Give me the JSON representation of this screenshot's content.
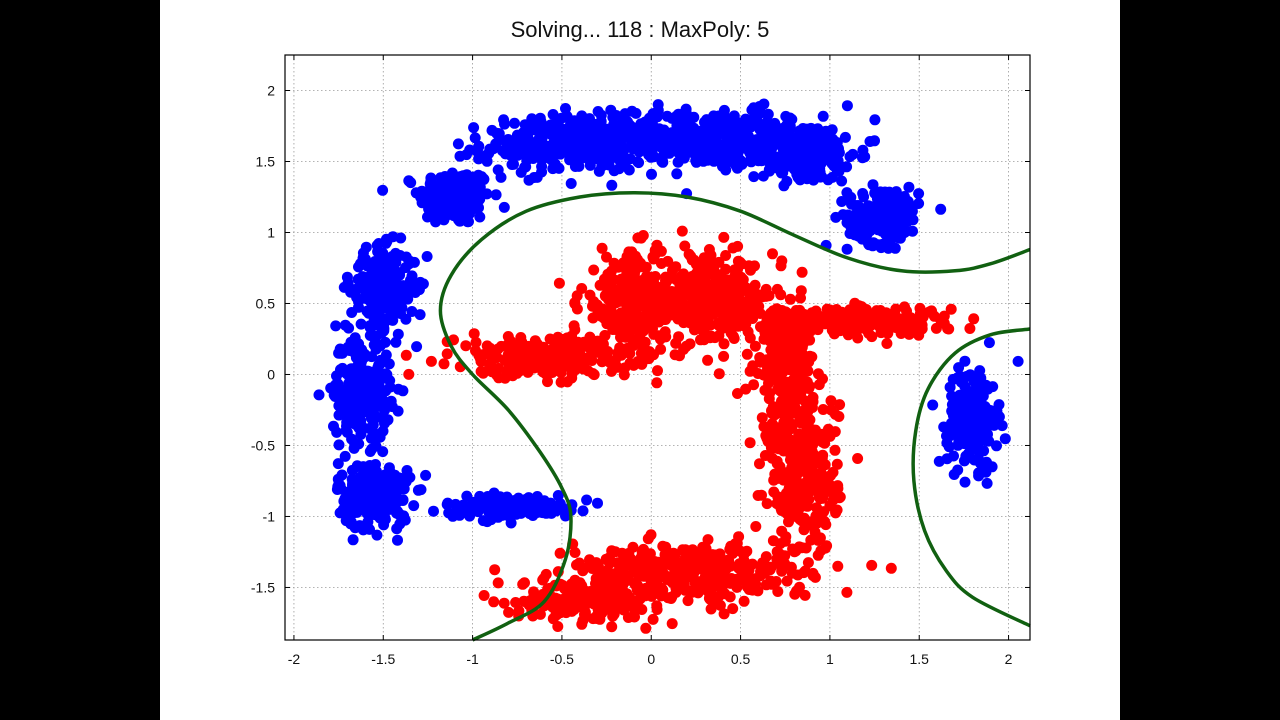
{
  "title": "Solving... 118 : MaxPoly:  5",
  "chart_data": {
    "type": "scatter",
    "title": "Solving... 118 : MaxPoly:  5",
    "xlabel": "",
    "ylabel": "",
    "xlim": [
      -2.05,
      2.12
    ],
    "ylim": [
      -1.87,
      2.25
    ],
    "grid": true,
    "x_ticks": [
      -2,
      -1.5,
      -1,
      -0.5,
      0,
      0.5,
      1,
      1.5,
      2
    ],
    "x_tick_labels": [
      "-2",
      "-1.5",
      "-1",
      "-0.5",
      "0",
      "0.5",
      "1",
      "1.5",
      "2"
    ],
    "y_ticks": [
      2,
      1.5,
      1,
      0.5,
      0,
      -0.5,
      -1,
      -1.5
    ],
    "y_tick_labels": [
      "2",
      "1.5",
      "1",
      "0.5",
      "0",
      "-0.5",
      "-1",
      "-1.5"
    ],
    "colors": {
      "blue": "#0000ff",
      "red": "#ff0000",
      "boundary": "#116011",
      "grid": "#9a9a9a"
    },
    "series": [
      {
        "color": "#0000ff",
        "clusters": [
          {
            "cx": -1.1,
            "cy": 1.25,
            "sx": 0.1,
            "sy": 0.1,
            "n": 200
          },
          {
            "cx": -0.45,
            "cy": 1.62,
            "sx": 0.25,
            "sy": 0.1,
            "n": 320
          },
          {
            "cx": 0.35,
            "cy": 1.66,
            "sx": 0.3,
            "sy": 0.1,
            "n": 360
          },
          {
            "cx": 0.85,
            "cy": 1.55,
            "sx": 0.15,
            "sy": 0.1,
            "n": 200
          },
          {
            "cx": 1.3,
            "cy": 1.12,
            "sx": 0.1,
            "sy": 0.1,
            "n": 190
          },
          {
            "cx": -1.5,
            "cy": 0.6,
            "sx": 0.09,
            "sy": 0.14,
            "n": 240
          },
          {
            "cx": -1.62,
            "cy": -0.1,
            "sx": 0.08,
            "sy": 0.18,
            "n": 240
          },
          {
            "cx": -1.55,
            "cy": -0.85,
            "sx": 0.1,
            "sy": 0.12,
            "n": 210
          },
          {
            "cx": -0.8,
            "cy": -0.93,
            "sx": 0.18,
            "sy": 0.04,
            "n": 170
          },
          {
            "cx": 1.8,
            "cy": -0.3,
            "sx": 0.07,
            "sy": 0.18,
            "n": 200
          }
        ]
      },
      {
        "color": "#ff0000",
        "clusters": [
          {
            "cx": -0.6,
            "cy": 0.12,
            "sx": 0.25,
            "sy": 0.07,
            "n": 280
          },
          {
            "cx": -0.1,
            "cy": 0.5,
            "sx": 0.15,
            "sy": 0.18,
            "n": 260
          },
          {
            "cx": 0.35,
            "cy": 0.52,
            "sx": 0.15,
            "sy": 0.15,
            "n": 280
          },
          {
            "cx": 0.75,
            "cy": 0.1,
            "sx": 0.08,
            "sy": 0.25,
            "n": 220
          },
          {
            "cx": 1.15,
            "cy": 0.38,
            "sx": 0.25,
            "sy": 0.05,
            "n": 200
          },
          {
            "cx": 0.85,
            "cy": -0.7,
            "sx": 0.1,
            "sy": 0.3,
            "n": 300
          },
          {
            "cx": 0.2,
            "cy": -1.4,
            "sx": 0.35,
            "sy": 0.1,
            "n": 340
          },
          {
            "cx": -0.35,
            "cy": -1.58,
            "sx": 0.2,
            "sy": 0.07,
            "n": 200
          }
        ]
      }
    ],
    "boundary_curves": [
      [
        [
          -1.0,
          -1.87
        ],
        [
          -0.8,
          -1.75
        ],
        [
          -0.6,
          -1.6
        ],
        [
          -0.48,
          -1.3
        ],
        [
          -0.45,
          -1.0
        ],
        [
          -0.5,
          -0.8
        ],
        [
          -0.62,
          -0.55
        ],
        [
          -0.8,
          -0.25
        ],
        [
          -1.0,
          0.0
        ],
        [
          -1.12,
          0.2
        ],
        [
          -1.18,
          0.45
        ],
        [
          -1.12,
          0.7
        ],
        [
          -0.95,
          0.95
        ],
        [
          -0.7,
          1.15
        ],
        [
          -0.4,
          1.25
        ],
        [
          -0.1,
          1.28
        ],
        [
          0.2,
          1.25
        ],
        [
          0.5,
          1.15
        ],
        [
          0.8,
          0.98
        ],
        [
          1.1,
          0.82
        ],
        [
          1.4,
          0.73
        ],
        [
          1.7,
          0.73
        ],
        [
          1.9,
          0.78
        ],
        [
          2.12,
          0.88
        ]
      ],
      [
        [
          2.12,
          0.32
        ],
        [
          1.9,
          0.28
        ],
        [
          1.7,
          0.15
        ],
        [
          1.55,
          -0.1
        ],
        [
          1.48,
          -0.4
        ],
        [
          1.47,
          -0.75
        ],
        [
          1.53,
          -1.1
        ],
        [
          1.65,
          -1.38
        ],
        [
          1.8,
          -1.57
        ],
        [
          2.12,
          -1.77
        ]
      ]
    ]
  }
}
